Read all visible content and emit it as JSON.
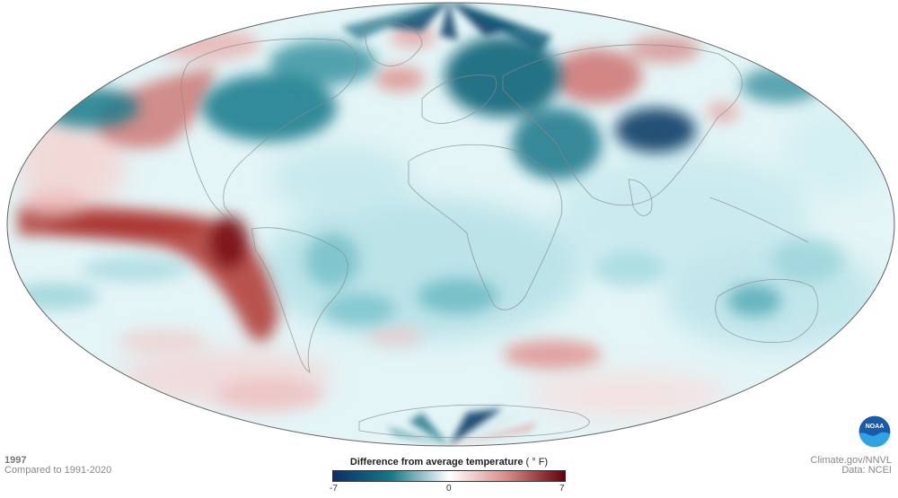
{
  "map": {
    "projection": "Mollweide",
    "subject": "Difference from average temperature, 1997",
    "colors": {
      "strong_cold": "#08306b",
      "cold": "#157889",
      "neutral": "#ffffff",
      "warm": "#d98a88",
      "strong_warm": "#67000d",
      "land_border": "#888888",
      "outline": "#666666"
    }
  },
  "caption": {
    "year": "1997",
    "baseline": "Compared to 1991-2020"
  },
  "legend": {
    "title": "Difference from average temperature",
    "unit": "( ° F)",
    "min": "-7",
    "mid": "0",
    "max": "7",
    "range": [
      -7,
      7
    ]
  },
  "credits": {
    "site": "Climate.gov/NNVL",
    "data": "Data: NCEI"
  },
  "logo": {
    "text": "NOAA",
    "icon": "noaa-logo"
  }
}
